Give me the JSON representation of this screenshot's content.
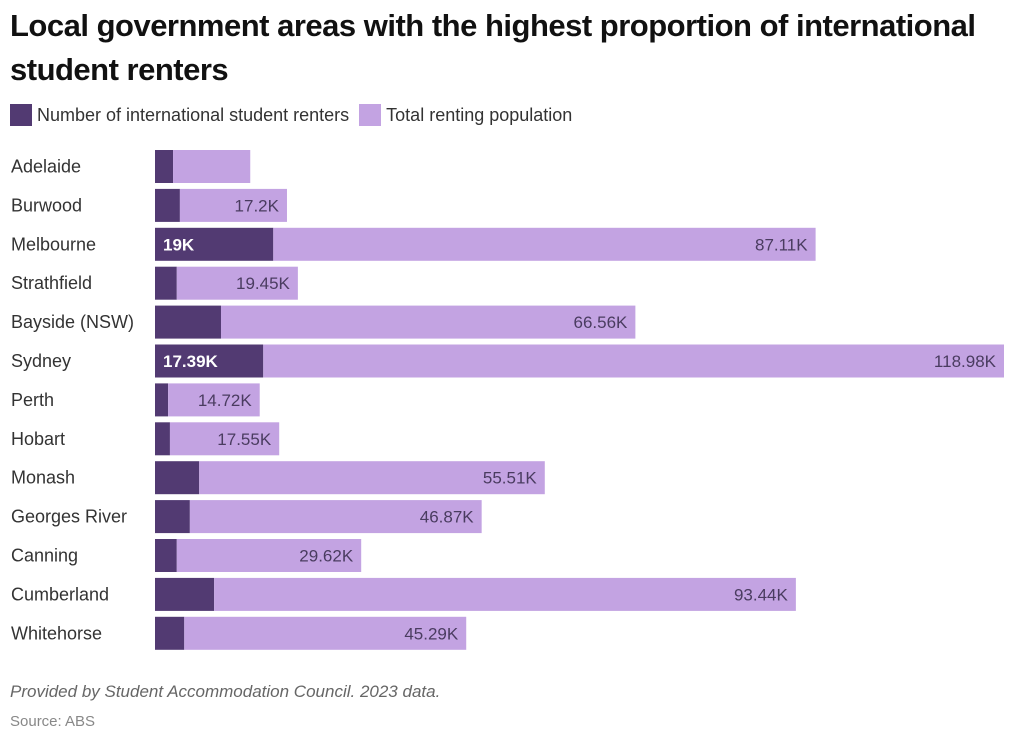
{
  "chart_data": {
    "type": "bar",
    "orientation": "horizontal",
    "stacked": true,
    "title": "Local government areas with the highest proportion of international student renters",
    "xlabel": "",
    "ylabel": "",
    "grid": false,
    "legend_position": "top-left",
    "categories": [
      "Adelaide",
      "Burwood",
      "Melbourne",
      "Strathfield",
      "Bayside (NSW)",
      "Sydney",
      "Perth",
      "Hobart",
      "Monash",
      "Georges River",
      "Canning",
      "Cumberland",
      "Whitehorse"
    ],
    "series": [
      {
        "name": "Number of international student renters",
        "color": "#523a72",
        "values": [
          2.9,
          4.0,
          19.0,
          3.5,
          10.6,
          17.39,
          2.1,
          2.4,
          7.1,
          5.6,
          3.5,
          9.5,
          4.7
        ],
        "labels": [
          "",
          "",
          "19K",
          "",
          "",
          "17.39K",
          "",
          "",
          "",
          "",
          "",
          "",
          ""
        ]
      },
      {
        "name": "Total renting population",
        "color": "#c3a3e2",
        "values": [
          12.4,
          17.2,
          87.11,
          19.45,
          66.56,
          118.98,
          14.72,
          17.55,
          55.51,
          46.87,
          29.62,
          93.44,
          45.29
        ],
        "labels": [
          "",
          "17.2K",
          "87.11K",
          "19.45K",
          "66.56K",
          "118.98K",
          "14.72K",
          "17.55K",
          "55.51K",
          "46.87K",
          "29.62K",
          "93.44K",
          "45.29K"
        ]
      }
    ],
    "units": "thousands",
    "xlim": [
      0,
      136.37
    ]
  },
  "legend": {
    "items": [
      {
        "label": "Number of international student renters",
        "color": "#523a72"
      },
      {
        "label": "Total renting population",
        "color": "#c3a3e2"
      }
    ]
  },
  "footer": {
    "note": "Provided by Student Accommodation Council. 2023 data.",
    "source": "Source: ABS"
  }
}
